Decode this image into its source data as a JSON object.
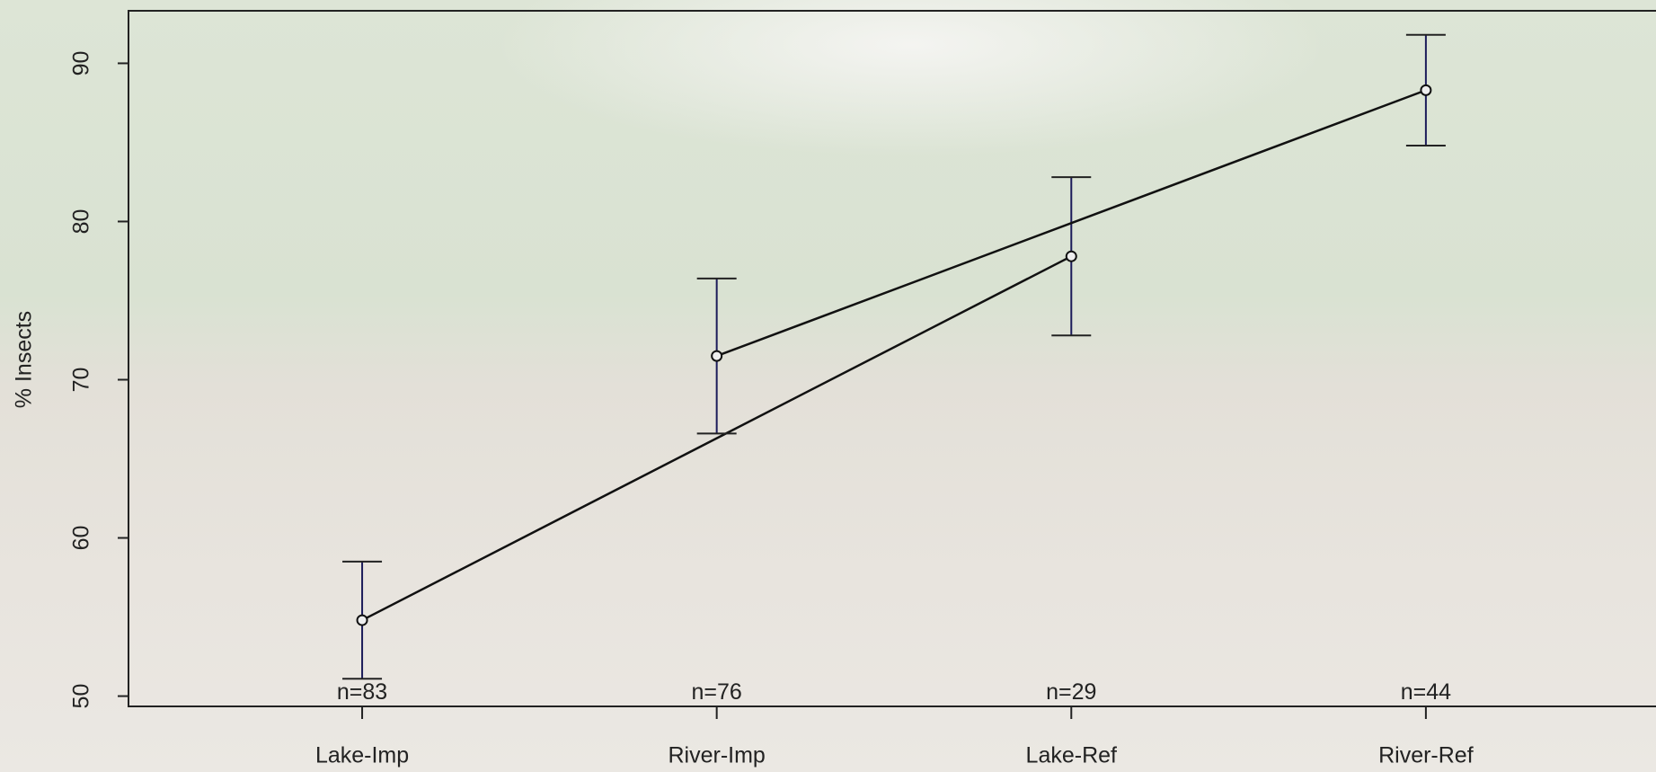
{
  "chart_data": {
    "type": "errorline",
    "y_label": "% Insects",
    "xlim": [
      0.341,
      4.649
    ],
    "xticks": [
      {
        "value": 1,
        "label": "Lake-Imp"
      },
      {
        "value": 2,
        "label": "River-Imp"
      },
      {
        "value": 3,
        "label": "Lake-Ref"
      },
      {
        "value": 4,
        "label": "River-Ref"
      }
    ],
    "ylim": [
      49.35,
      93.32
    ],
    "yticks": [
      50,
      60,
      70,
      80,
      90
    ],
    "series": [
      {
        "color": "#111111",
        "error_color": "#1c1c5a",
        "x": [
          1,
          3
        ],
        "values": [
          54.8,
          77.8
        ],
        "errors": [
          3.7,
          5.0
        ]
      },
      {
        "color": "#111111",
        "error_color": "#1c1c5a",
        "x": [
          2,
          4
        ],
        "values": [
          71.5,
          88.3
        ],
        "errors": [
          4.9,
          3.5
        ]
      }
    ],
    "annotations": [
      {
        "x": 1,
        "y": 50,
        "text": "n=83"
      },
      {
        "x": 2,
        "y": 50,
        "text": "n=76"
      },
      {
        "x": 3,
        "y": 50,
        "text": "n=29"
      },
      {
        "x": 4,
        "y": 50,
        "text": "n=44"
      }
    ]
  }
}
